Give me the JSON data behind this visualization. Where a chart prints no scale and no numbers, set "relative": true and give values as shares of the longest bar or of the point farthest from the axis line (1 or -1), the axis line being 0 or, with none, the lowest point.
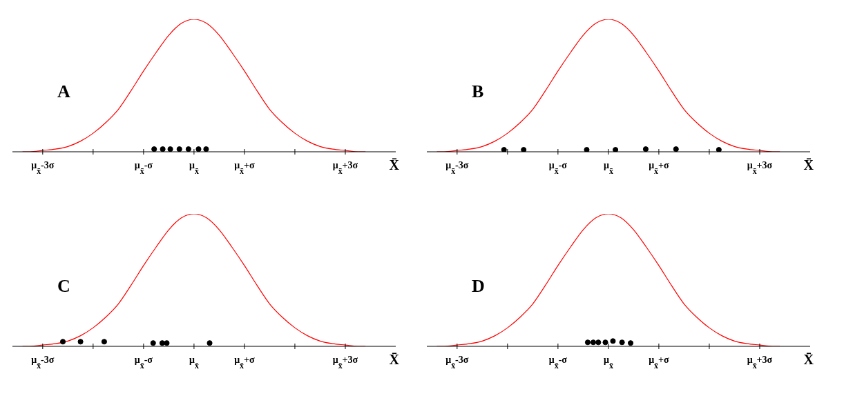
{
  "chart_data": [
    {
      "type": "line",
      "title": "A",
      "xlabel": "X̄",
      "relative": true,
      "grid": false,
      "xlim": [
        -3.6,
        4
      ],
      "xticks": [
        {
          "value": -3,
          "label": "μ$_{x̄}$-3σ"
        },
        {
          "value": -2,
          "label": null
        },
        {
          "value": -1,
          "label": "μ$_{x̄}$-σ"
        },
        {
          "value": 0,
          "label": "μ$_{x̄}$"
        },
        {
          "value": 1,
          "label": "μ$_{x̄}$+σ"
        },
        {
          "value": 2,
          "label": null
        },
        {
          "value": 3,
          "label": "μ$_{x̄}$+3σ"
        }
      ],
      "series": [
        {
          "type": "line",
          "color": "#ff0000",
          "marker": "none",
          "x": [
            -3.4,
            -3.25,
            -3,
            -2.75,
            -2.5,
            -2.25,
            -2,
            -1.75,
            -1.5,
            -1.25,
            -1,
            -0.75,
            -0.5,
            -0.25,
            0,
            0.25,
            0.5,
            0.75,
            1,
            1.25,
            1.5,
            1.75,
            2,
            2.25,
            2.5,
            2.75,
            3,
            3.25,
            3.4
          ],
          "values": [
            0,
            0,
            0.01,
            0.02,
            0.04,
            0.08,
            0.14,
            0.22,
            0.32,
            0.46,
            0.61,
            0.75,
            0.88,
            0.97,
            1,
            0.97,
            0.88,
            0.75,
            0.61,
            0.46,
            0.32,
            0.22,
            0.14,
            0.08,
            0.04,
            0.02,
            0.01,
            0,
            0
          ]
        },
        {
          "type": "scatter",
          "color": "#000000",
          "marker": "circle",
          "x": [
            -0.79,
            -0.62,
            -0.47,
            -0.29,
            -0.11,
            0.09,
            0.24
          ],
          "values": [
            0.02,
            0.02,
            0.02,
            0.02,
            0.02,
            0.02,
            0.02
          ]
        }
      ]
    },
    {
      "type": "line",
      "title": "B",
      "xlabel": "X̄",
      "relative": true,
      "grid": false,
      "xlim": [
        -3.6,
        4
      ],
      "xticks": [
        {
          "value": -3,
          "label": "μ$_{x̄}$-3σ"
        },
        {
          "value": -2,
          "label": null
        },
        {
          "value": -1,
          "label": "μ$_{x̄}$-σ"
        },
        {
          "value": 0,
          "label": "μ$_{x̄}$"
        },
        {
          "value": 1,
          "label": "μ$_{x̄}$+σ"
        },
        {
          "value": 2,
          "label": null
        },
        {
          "value": 3,
          "label": "μ$_{x̄}$+3σ"
        }
      ],
      "series": [
        {
          "type": "line",
          "color": "#ff0000",
          "marker": "none",
          "x": [
            -3.4,
            -3.25,
            -3,
            -2.75,
            -2.5,
            -2.25,
            -2,
            -1.75,
            -1.5,
            -1.25,
            -1,
            -0.75,
            -0.5,
            -0.25,
            0,
            0.25,
            0.5,
            0.75,
            1,
            1.25,
            1.5,
            1.75,
            2,
            2.25,
            2.5,
            2.75,
            3,
            3.25,
            3.4
          ],
          "values": [
            0,
            0,
            0.01,
            0.02,
            0.04,
            0.08,
            0.14,
            0.22,
            0.32,
            0.46,
            0.61,
            0.75,
            0.88,
            0.97,
            1,
            0.97,
            0.88,
            0.75,
            0.61,
            0.46,
            0.32,
            0.22,
            0.14,
            0.08,
            0.04,
            0.02,
            0.01,
            0,
            0
          ]
        },
        {
          "type": "scatter",
          "color": "#000000",
          "marker": "circle",
          "x": [
            -2.07,
            -1.68,
            -0.43,
            0.14,
            0.74,
            1.34,
            2.19
          ],
          "values": [
            0.015,
            0.015,
            0.015,
            0.015,
            0.02,
            0.02,
            0.015
          ]
        }
      ]
    },
    {
      "type": "line",
      "title": "C",
      "xlabel": "X̄",
      "relative": true,
      "grid": false,
      "xlim": [
        -3.6,
        4
      ],
      "xticks": [
        {
          "value": -3,
          "label": "μ$_{x̄}$-3σ"
        },
        {
          "value": -2,
          "label": null
        },
        {
          "value": -1,
          "label": "μ$_{x̄}$-σ"
        },
        {
          "value": 0,
          "label": "μ$_{x̄}$"
        },
        {
          "value": 1,
          "label": "μ$_{x̄}$+σ"
        },
        {
          "value": 2,
          "label": null
        },
        {
          "value": 3,
          "label": "μ$_{x̄}$+3σ"
        }
      ],
      "series": [
        {
          "type": "line",
          "color": "#ff0000",
          "marker": "none",
          "x": [
            -3.4,
            -3.25,
            -3,
            -2.75,
            -2.5,
            -2.25,
            -2,
            -1.75,
            -1.5,
            -1.25,
            -1,
            -0.75,
            -0.5,
            -0.25,
            0,
            0.25,
            0.5,
            0.75,
            1,
            1.25,
            1.5,
            1.75,
            2,
            2.25,
            2.5,
            2.75,
            3,
            3.25,
            3.4
          ],
          "values": [
            0,
            0,
            0.01,
            0.02,
            0.04,
            0.08,
            0.14,
            0.22,
            0.32,
            0.46,
            0.61,
            0.75,
            0.88,
            0.97,
            1,
            0.97,
            0.88,
            0.75,
            0.61,
            0.46,
            0.32,
            0.22,
            0.14,
            0.08,
            0.04,
            0.02,
            0.01,
            0,
            0
          ]
        },
        {
          "type": "scatter",
          "color": "#000000",
          "marker": "circle",
          "x": [
            -2.6,
            -2.25,
            -1.78,
            -0.81,
            -0.63,
            -0.54,
            0.31
          ],
          "values": [
            0.035,
            0.035,
            0.035,
            0.025,
            0.025,
            0.025,
            0.025
          ]
        }
      ]
    },
    {
      "type": "line",
      "title": "D",
      "xlabel": "X̄",
      "relative": true,
      "grid": false,
      "xlim": [
        -3.6,
        4
      ],
      "xticks": [
        {
          "value": -3,
          "label": "μ$_{x̄}$-3σ"
        },
        {
          "value": -2,
          "label": null
        },
        {
          "value": -1,
          "label": "μ$_{x̄}$-σ"
        },
        {
          "value": 0,
          "label": "μ$_{x̄}$"
        },
        {
          "value": 1,
          "label": "μ$_{x̄}$+σ"
        },
        {
          "value": 2,
          "label": null
        },
        {
          "value": 3,
          "label": "μ$_{x̄}$+3σ"
        }
      ],
      "series": [
        {
          "type": "line",
          "color": "#ff0000",
          "marker": "none",
          "x": [
            -3.4,
            -3.25,
            -3,
            -2.75,
            -2.5,
            -2.25,
            -2,
            -1.75,
            -1.5,
            -1.25,
            -1,
            -0.75,
            -0.5,
            -0.25,
            0,
            0.25,
            0.5,
            0.75,
            1,
            1.25,
            1.5,
            1.75,
            2,
            2.25,
            2.5,
            2.75,
            3,
            3.25,
            3.4
          ],
          "values": [
            0,
            0,
            0.01,
            0.02,
            0.04,
            0.08,
            0.14,
            0.22,
            0.32,
            0.46,
            0.61,
            0.75,
            0.88,
            0.97,
            1,
            0.97,
            0.88,
            0.75,
            0.61,
            0.46,
            0.32,
            0.22,
            0.14,
            0.08,
            0.04,
            0.02,
            0.01,
            0,
            0
          ]
        },
        {
          "type": "scatter",
          "color": "#000000",
          "marker": "circle",
          "x": [
            -0.41,
            -0.3,
            -0.2,
            -0.06,
            0.09,
            0.27,
            0.44
          ],
          "values": [
            0.03,
            0.03,
            0.03,
            0.03,
            0.04,
            0.03,
            0.025
          ]
        }
      ]
    }
  ]
}
